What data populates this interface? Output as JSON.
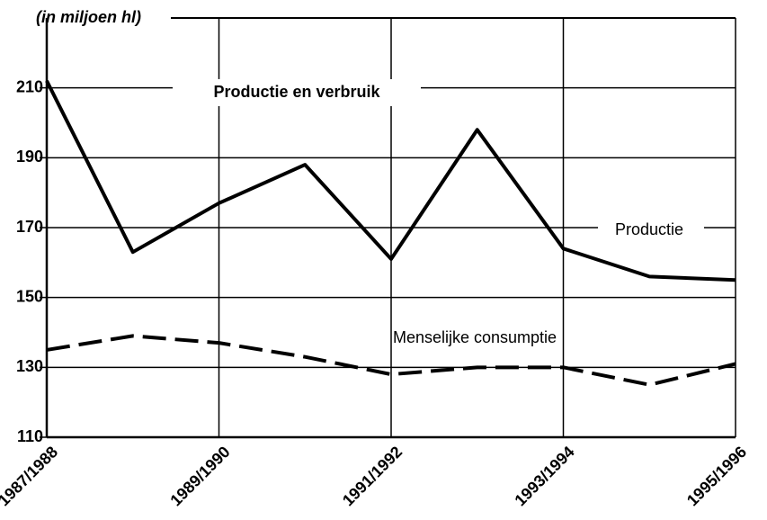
{
  "chart_data": {
    "type": "line",
    "title": "Productie en verbruik",
    "y_label": "(in miljoen hl)",
    "categories": [
      "1987/1988",
      null,
      "1989/1990",
      null,
      "1991/1992",
      null,
      "1993/1994",
      null,
      "1995/1996"
    ],
    "series": [
      {
        "name": "Productie",
        "color": "#000000",
        "dash": "solid",
        "values": [
          212,
          163,
          177,
          188,
          161,
          198,
          164,
          156,
          155
        ]
      },
      {
        "name": "Menselijke consumptie",
        "color": "#000000",
        "dash": "dashed",
        "values": [
          135,
          139,
          137,
          133,
          128,
          130,
          130,
          125,
          131
        ]
      }
    ],
    "ylim": [
      110,
      230
    ],
    "yticks": [
      110,
      130,
      150,
      170,
      190,
      210
    ],
    "grid": true
  }
}
